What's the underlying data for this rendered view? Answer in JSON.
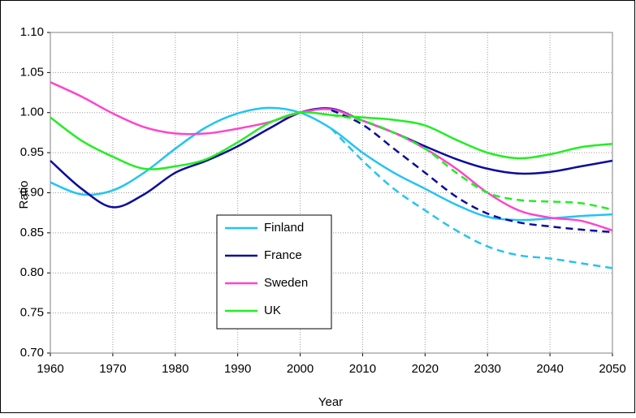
{
  "chart_data": {
    "type": "line",
    "x_label": "Year",
    "y_label": "Ratio",
    "x": [
      1960,
      1965,
      1970,
      1975,
      1980,
      1985,
      1990,
      1995,
      2000,
      2005,
      2010,
      2015,
      2020,
      2025,
      2030,
      2035,
      2040,
      2045,
      2050
    ],
    "series": [
      {
        "name": "Finland",
        "color": "#22c4f2",
        "values": [
          0.913,
          0.898,
          0.903,
          0.925,
          0.955,
          0.982,
          0.999,
          1.006,
          1.0,
          0.98,
          0.95,
          0.925,
          0.905,
          0.885,
          0.87,
          0.866,
          0.868,
          0.871,
          0.873
        ]
      },
      {
        "name": "France",
        "color": "#0c0c9c",
        "values": [
          0.94,
          0.905,
          0.882,
          0.898,
          0.925,
          0.94,
          0.958,
          0.98,
          1.0,
          1.005,
          0.99,
          0.975,
          0.958,
          0.942,
          0.93,
          0.924,
          0.926,
          0.933,
          0.94
        ]
      },
      {
        "name": "Sweden",
        "color": "#ff44cc",
        "values": [
          1.038,
          1.02,
          0.999,
          0.982,
          0.974,
          0.974,
          0.98,
          0.988,
          1.0,
          1.004,
          0.99,
          0.975,
          0.955,
          0.93,
          0.9,
          0.878,
          0.869,
          0.865,
          0.853
        ]
      },
      {
        "name": "UK",
        "color": "#22ee22",
        "values": [
          0.994,
          0.965,
          0.945,
          0.93,
          0.933,
          0.942,
          0.963,
          0.987,
          1.0,
          0.997,
          0.994,
          0.991,
          0.984,
          0.966,
          0.95,
          0.943,
          0.948,
          0.957,
          0.961
        ]
      },
      {
        "color": "#22c4f2",
        "dashed": true,
        "values": [
          null,
          null,
          null,
          null,
          null,
          null,
          null,
          null,
          null,
          0.98,
          0.94,
          0.905,
          0.878,
          0.853,
          0.833,
          0.822,
          0.818,
          0.812,
          0.806
        ]
      },
      {
        "color": "#0c0c9c",
        "dashed": true,
        "values": [
          null,
          null,
          null,
          null,
          null,
          null,
          null,
          null,
          null,
          1.003,
          0.985,
          0.955,
          0.925,
          0.895,
          0.874,
          0.863,
          0.858,
          0.854,
          0.851
        ]
      },
      {
        "color": "#22ee22",
        "dashed": true,
        "values": [
          null,
          null,
          null,
          null,
          null,
          null,
          null,
          null,
          null,
          0.997,
          0.99,
          0.975,
          0.955,
          0.925,
          0.9,
          0.891,
          0.889,
          0.887,
          0.879
        ]
      }
    ],
    "xlim": [
      1960,
      2050
    ],
    "xticks": [
      1960,
      1970,
      1980,
      1990,
      2000,
      2010,
      2020,
      2030,
      2040,
      2050
    ],
    "ylim": [
      0.7,
      1.1
    ],
    "yticks": [
      {
        "value": 0.7,
        "label": "0.70"
      },
      0.75,
      {
        "value": 0.8,
        "label": "0.80"
      },
      0.85,
      {
        "value": 0.9,
        "label": "0.90"
      },
      0.95,
      {
        "value": 1.0,
        "label": "1.00"
      },
      1.05,
      {
        "value": 1.1,
        "label": "1.10"
      }
    ],
    "grid": true
  }
}
